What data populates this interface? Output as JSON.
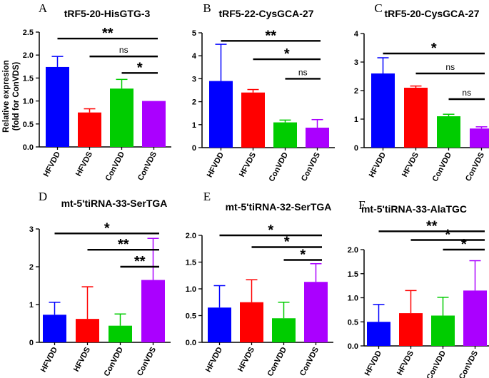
{
  "figure": {
    "ylabel_line1": "Relative expresion",
    "ylabel_line2": "(fold for ConVDS)"
  },
  "colors": {
    "HFVDD": "#0000ff",
    "HFVDS": "#ff0000",
    "ConVDD": "#00cc00",
    "ConVDS": "#aa00ff"
  },
  "chart_data": [
    {
      "letter": "A",
      "type": "bar",
      "title": "tRF5-20-HisGTG-3",
      "categories": [
        "HFVDD",
        "HFVDS",
        "ConVDD",
        "ConVDS"
      ],
      "values": [
        1.74,
        0.75,
        1.27,
        1.0
      ],
      "errors": [
        0.23,
        0.08,
        0.2,
        0.0
      ],
      "ylim": [
        0,
        2.5
      ],
      "yticks": [
        "0.0",
        "0.5",
        "1.0",
        "1.5",
        "2.0",
        "2.5"
      ],
      "comparisons": [
        {
          "from": "HFVDD",
          "to": "ConVDS",
          "label": "**",
          "level": 2.36
        },
        {
          "from": "HFVDS",
          "to": "ConVDS",
          "label": "ns",
          "level": 1.97
        },
        {
          "from": "ConVDD",
          "to": "ConVDS",
          "label": "*",
          "level": 1.61
        }
      ]
    },
    {
      "letter": "B",
      "type": "bar",
      "title": "tRF5-22-CysGCA-27",
      "categories": [
        "HFVDD",
        "HFVDS",
        "ConVDD",
        "ConVDS"
      ],
      "values": [
        2.9,
        2.4,
        1.1,
        0.87
      ],
      "errors": [
        1.6,
        0.13,
        0.1,
        0.35
      ],
      "ylim": [
        0,
        5
      ],
      "yticks": [
        "0",
        "1",
        "2",
        "3",
        "4",
        "5"
      ],
      "comparisons": [
        {
          "from": "HFVDD",
          "to": "ConVDS",
          "label": "**",
          "level": 4.65
        },
        {
          "from": "HFVDS",
          "to": "ConVDS",
          "label": "*",
          "level": 3.85
        },
        {
          "from": "ConVDD",
          "to": "ConVDS",
          "label": "ns",
          "level": 3.0
        }
      ]
    },
    {
      "letter": "C",
      "type": "bar",
      "title": "tRF5-20-CysGCA-27",
      "categories": [
        "HFVDD",
        "HFVDS",
        "ConVDD",
        "ConVDS"
      ],
      "values": [
        2.6,
        2.1,
        1.1,
        0.67
      ],
      "errors": [
        0.55,
        0.06,
        0.07,
        0.06
      ],
      "ylim": [
        0,
        4
      ],
      "yticks": [
        "0",
        "1",
        "2",
        "3",
        "4"
      ],
      "comparisons": [
        {
          "from": "HFVDD",
          "to": "ConVDS",
          "label": "*",
          "level": 3.3
        },
        {
          "from": "HFVDS",
          "to": "ConVDS",
          "label": "ns",
          "level": 2.6
        },
        {
          "from": "ConVDD",
          "to": "ConVDS",
          "label": "ns",
          "level": 1.7
        }
      ]
    },
    {
      "letter": "D",
      "type": "bar",
      "title": "mt-5'tiRNA-33-SerTGA",
      "categories": [
        "HFVDD",
        "HFVDS",
        "ConVDD",
        "ConVDS"
      ],
      "values": [
        0.73,
        0.62,
        0.44,
        1.65
      ],
      "errors": [
        0.33,
        0.85,
        0.31,
        1.1
      ],
      "ylim": [
        0,
        3
      ],
      "yticks": [
        "0",
        "1",
        "2",
        "3"
      ],
      "comparisons": [
        {
          "from": "HFVDD",
          "to": "ConVDS",
          "label": "*",
          "level": 2.88
        },
        {
          "from": "HFVDS",
          "to": "ConVDS",
          "label": "**",
          "level": 2.45
        },
        {
          "from": "ConVDD",
          "to": "ConVDS",
          "label": "**",
          "level": 2.0
        }
      ]
    },
    {
      "letter": "E",
      "type": "bar",
      "title": "mt-5'tiRNA-32-SerTGA",
      "categories": [
        "HFVDD",
        "HFVDS",
        "ConVDD",
        "ConVDS"
      ],
      "values": [
        0.65,
        0.75,
        0.45,
        1.13
      ],
      "errors": [
        0.41,
        0.42,
        0.3,
        0.34
      ],
      "ylim": [
        0,
        2.0
      ],
      "yticks": [
        "0.0",
        "0.5",
        "1.0",
        "1.5",
        "2.0"
      ],
      "comparisons": [
        {
          "from": "HFVDD",
          "to": "ConVDS",
          "label": "*",
          "level": 2.0
        },
        {
          "from": "HFVDS",
          "to": "ConVDS",
          "label": "*",
          "level": 1.78
        },
        {
          "from": "ConVDD",
          "to": "ConVDS",
          "label": "*",
          "level": 1.54
        }
      ]
    },
    {
      "letter": "F",
      "type": "bar",
      "title": "mt-5'tiRNA-33-AlaTGC",
      "categories": [
        "HFVDD",
        "HFVDS",
        "ConVDD",
        "ConVDS"
      ],
      "values": [
        0.5,
        0.68,
        0.63,
        1.15
      ],
      "errors": [
        0.36,
        0.47,
        0.38,
        0.62
      ],
      "ylim": [
        0,
        2.0
      ],
      "yticks": [
        "0.0",
        "0.5",
        "1.0",
        "1.5",
        "2.0"
      ],
      "comparisons": [
        {
          "from": "HFVDD",
          "to": "ConVDS",
          "label": "**",
          "level": 2.38
        },
        {
          "from": "HFVDS",
          "to": "ConVDS",
          "label": "*",
          "level": 2.2
        },
        {
          "from": "ConVDD",
          "to": "ConVDS",
          "label": "*",
          "level": 2.0
        }
      ]
    }
  ]
}
